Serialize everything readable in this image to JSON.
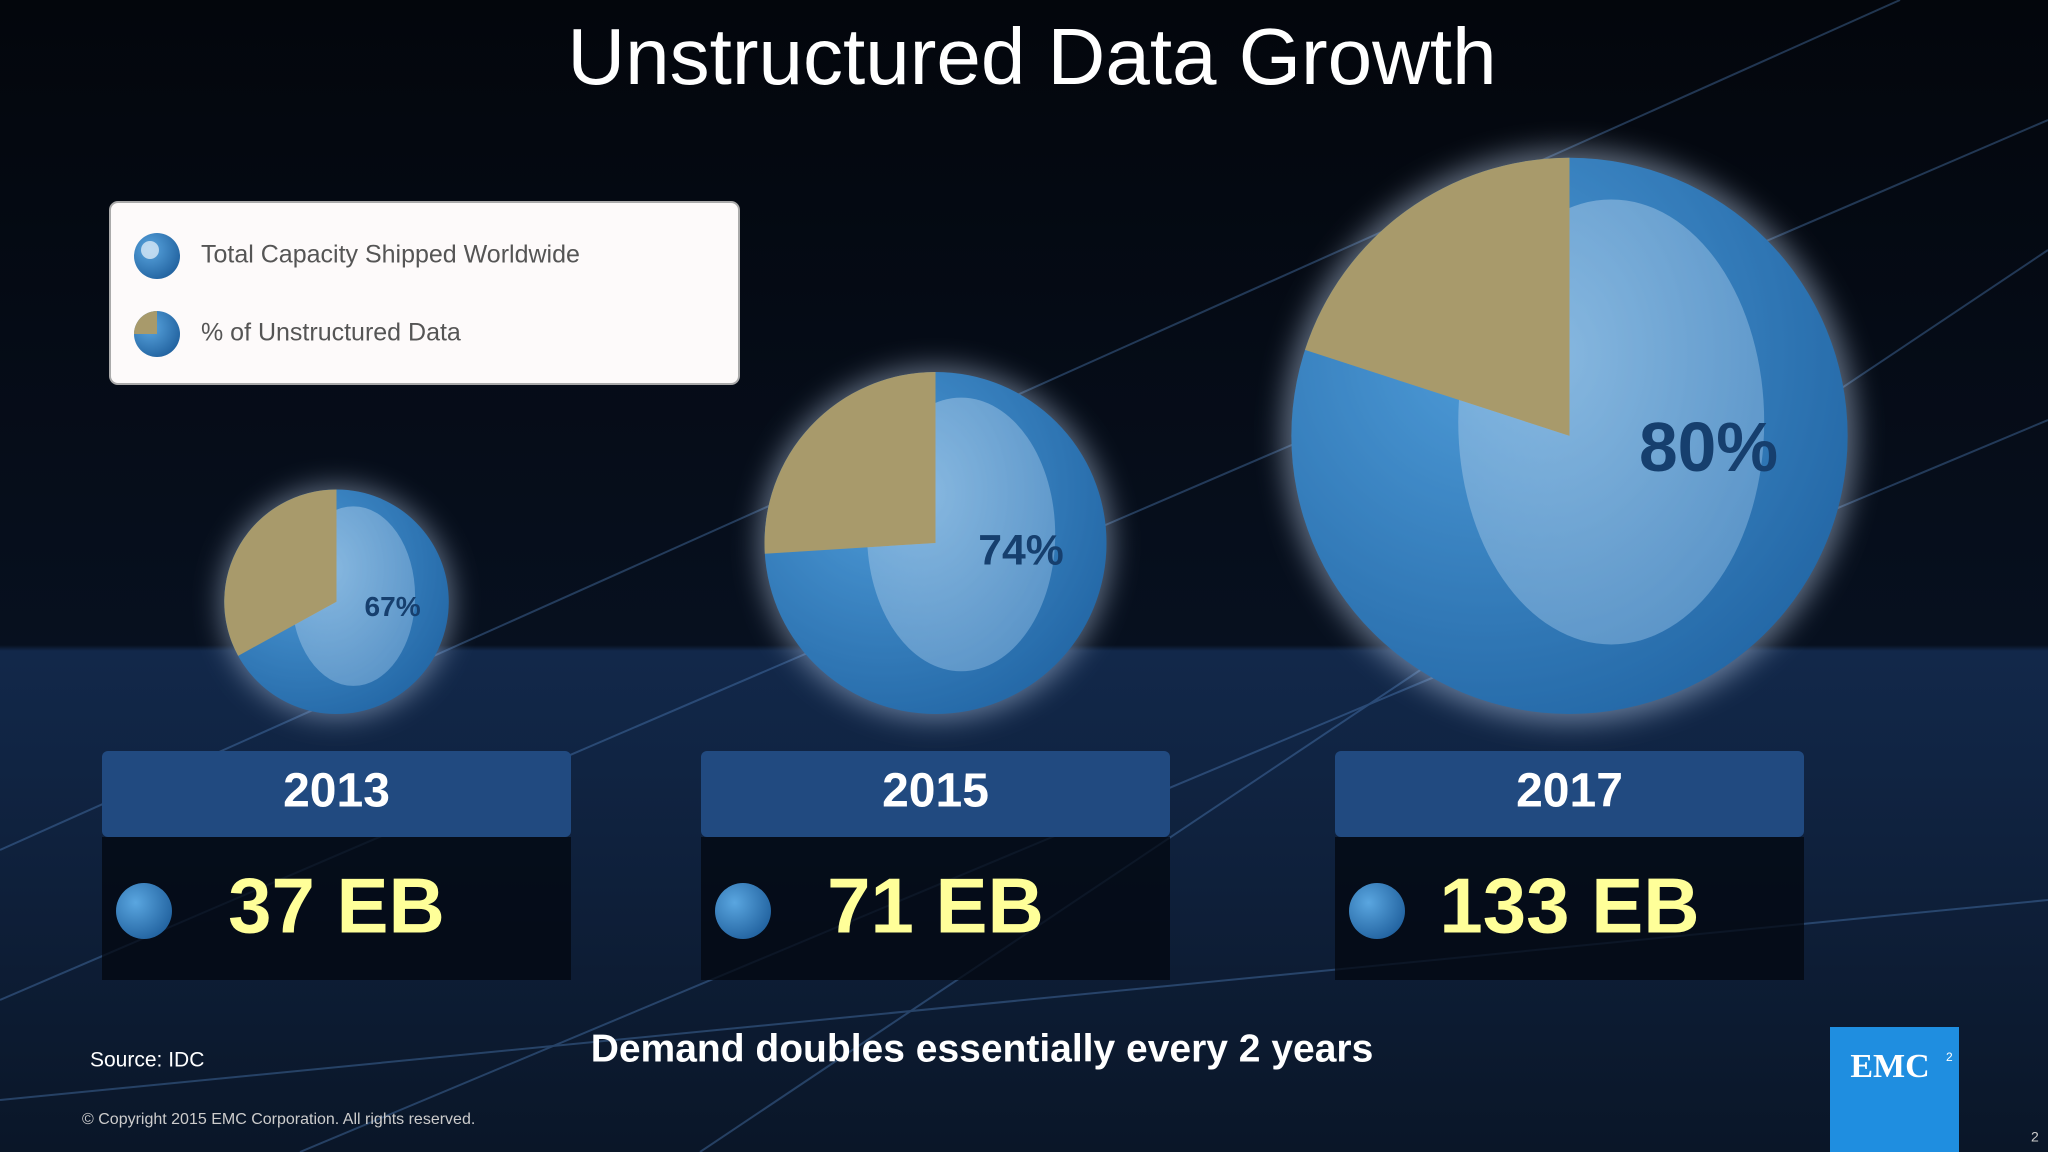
{
  "chart_data": {
    "type": "pie",
    "title": "Unstructured Data Growth",
    "categories": [
      "2013",
      "2015",
      "2017"
    ],
    "series": [
      {
        "name": "Total Capacity Shipped Worldwide",
        "color": "#2b7cc0",
        "values": [
          37,
          71,
          133
        ],
        "value_labels": [
          "37 EB",
          "71 EB",
          "133 EB"
        ]
      },
      {
        "name": "% of Unstructured Data",
        "color": "#2b7cc0",
        "values": [
          67,
          74,
          80
        ],
        "value_labels": [
          "67%",
          "74%",
          "80%"
        ]
      }
    ],
    "remainder_color": "#a89a6b",
    "note": "Demand doubles essentially every 2 years",
    "source": "Source: IDC"
  },
  "footer": {
    "copyright": "© Copyright 2015 EMC Corporation. All rights reserved.",
    "logo": "EMC",
    "logo_superscript": "2",
    "page_number": "2"
  }
}
